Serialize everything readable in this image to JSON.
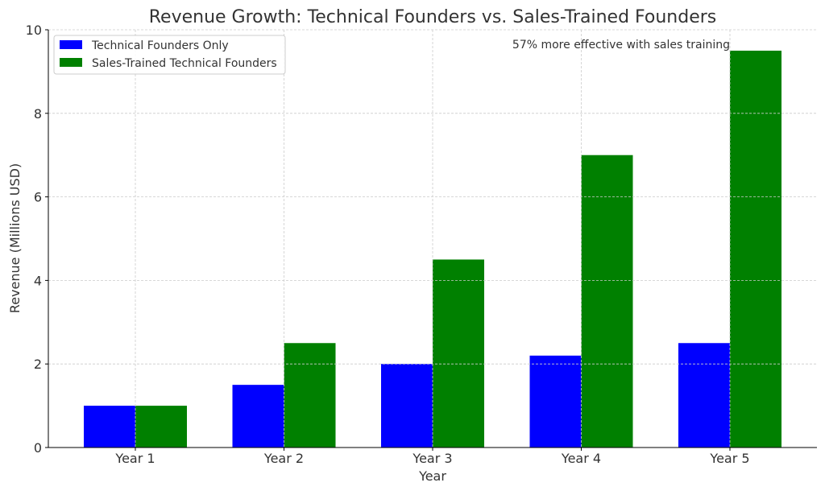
{
  "chart_data": {
    "type": "bar",
    "title": "Revenue Growth: Technical Founders vs. Sales-Trained Founders",
    "xlabel": "Year",
    "ylabel": "Revenue (Millions USD)",
    "categories": [
      "Year 1",
      "Year 2",
      "Year 3",
      "Year 4",
      "Year 5"
    ],
    "series": [
      {
        "name": "Technical Founders Only",
        "color": "#0000ff",
        "values": [
          1.0,
          1.5,
          2.0,
          2.2,
          2.5
        ]
      },
      {
        "name": "Sales-Trained Technical Founders",
        "color": "#008000",
        "values": [
          1.0,
          2.5,
          4.5,
          7.0,
          9.5
        ]
      }
    ],
    "ylim": [
      0,
      10
    ],
    "yticks": [
      "0",
      "2",
      "4",
      "6",
      "8",
      "10"
    ],
    "grid": true,
    "legend": "upper-left",
    "annotation": "57% more effective with sales training"
  }
}
